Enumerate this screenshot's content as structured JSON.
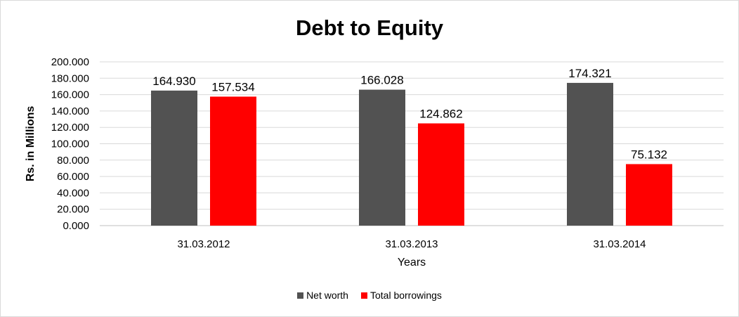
{
  "chart_data": {
    "type": "bar",
    "title": "Debt to Equity",
    "xlabel": "Years",
    "ylabel": "Rs. in Millions",
    "categories": [
      "31.03.2012",
      "31.03.2013",
      "31.03.2014"
    ],
    "series": [
      {
        "name": "Net worth",
        "values": [
          164.93,
          166.028,
          174.321
        ],
        "labels": [
          "164.930",
          "166.028",
          "174.321"
        ],
        "color": "#525252"
      },
      {
        "name": "Total borrowings",
        "values": [
          157.534,
          124.862,
          75.132
        ],
        "labels": [
          "157.534",
          "124.862",
          "75.132"
        ],
        "color": "#ff0000"
      }
    ],
    "ylim": [
      0,
      200
    ],
    "yticks": [
      "0.000",
      "20.000",
      "40.000",
      "60.000",
      "80.000",
      "100.000",
      "120.000",
      "140.000",
      "160.000",
      "180.000",
      "200.000"
    ],
    "grid": true,
    "legend": "bottom"
  }
}
